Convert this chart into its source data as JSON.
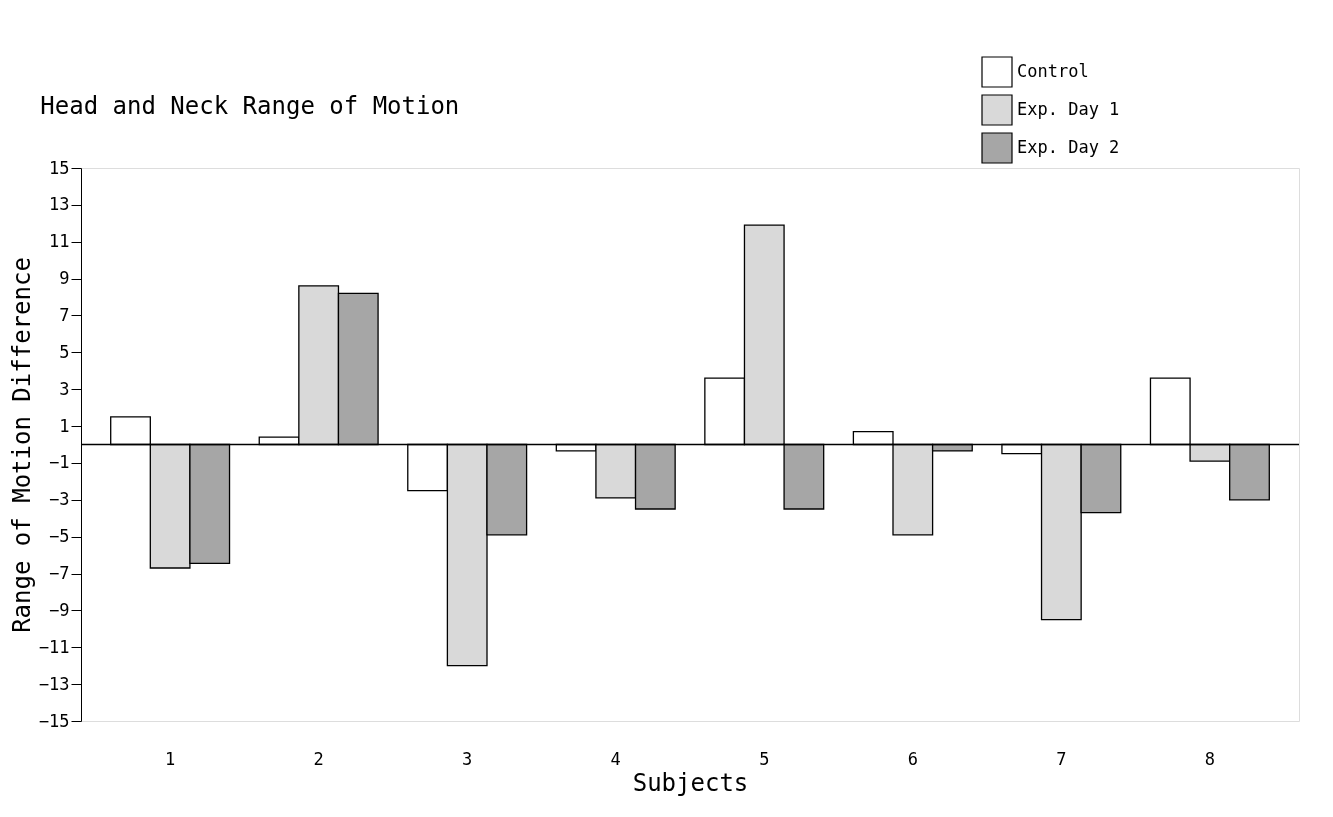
{
  "chart_data": {
    "type": "bar",
    "title": "Head and Neck Range of Motion",
    "xlabel": "Subjects",
    "ylabel": "Range of Motion Difference",
    "categories": [
      "1",
      "2",
      "3",
      "4",
      "5",
      "6",
      "7",
      "8"
    ],
    "series": [
      {
        "name": "Control",
        "color": "#ffffff",
        "values": [
          1.5,
          0.4,
          -2.5,
          -0.35,
          3.6,
          0.7,
          -0.5,
          3.6
        ]
      },
      {
        "name": "Exp. Day 1",
        "color": "#d9d9d9",
        "values": [
          -6.7,
          8.6,
          -12.0,
          -2.9,
          11.9,
          -4.9,
          -9.5,
          -0.9
        ]
      },
      {
        "name": "Exp. Day 2",
        "color": "#a6a6a6",
        "values": [
          -6.45,
          8.2,
          -4.9,
          -3.5,
          -3.5,
          -0.35,
          -3.7,
          -3.0
        ]
      }
    ],
    "ylim": [
      -15,
      15
    ],
    "yticks": [
      15,
      13,
      11,
      9,
      7,
      5,
      3,
      1,
      -1,
      -3,
      -5,
      -7,
      -9,
      -11,
      -13,
      -15
    ],
    "grid": false,
    "legend": "top right"
  }
}
